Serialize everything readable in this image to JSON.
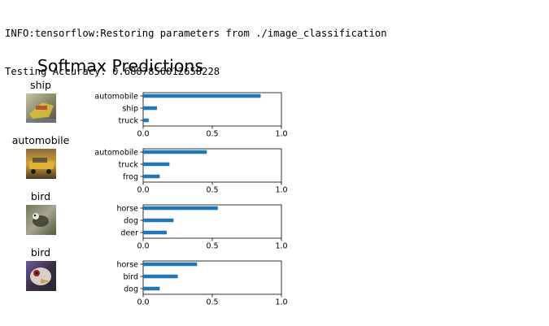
{
  "log": {
    "lines": [
      "INFO:tensorflow:Restoring parameters from ./image_classification",
      "Testing Accuracy: 0.6887856012658228"
    ]
  },
  "colors": {
    "bar": "#1f77b4",
    "axis": "#000000",
    "text": "#000000"
  },
  "chart_data": {
    "type": "bar",
    "orientation": "horizontal",
    "title": "Softmax Predictions",
    "xlim": [
      0,
      1
    ],
    "xticks": [
      "0.0",
      "0.5",
      "1.0"
    ],
    "rows": [
      {
        "label": "ship",
        "thumbnail": "ship-thumbnail",
        "categories": [
          "automobile",
          "ship",
          "truck"
        ],
        "values": [
          0.85,
          0.1,
          0.04
        ]
      },
      {
        "label": "automobile",
        "thumbnail": "automobile-thumbnail",
        "categories": [
          "automobile",
          "truck",
          "frog"
        ],
        "values": [
          0.46,
          0.19,
          0.12
        ]
      },
      {
        "label": "bird",
        "thumbnail": "bird-thumbnail",
        "categories": [
          "horse",
          "dog",
          "deer"
        ],
        "values": [
          0.54,
          0.22,
          0.17
        ]
      },
      {
        "label": "bird",
        "thumbnail": "bird-closeup-thumbnail",
        "categories": [
          "horse",
          "bird",
          "dog"
        ],
        "values": [
          0.39,
          0.25,
          0.12
        ]
      }
    ]
  }
}
